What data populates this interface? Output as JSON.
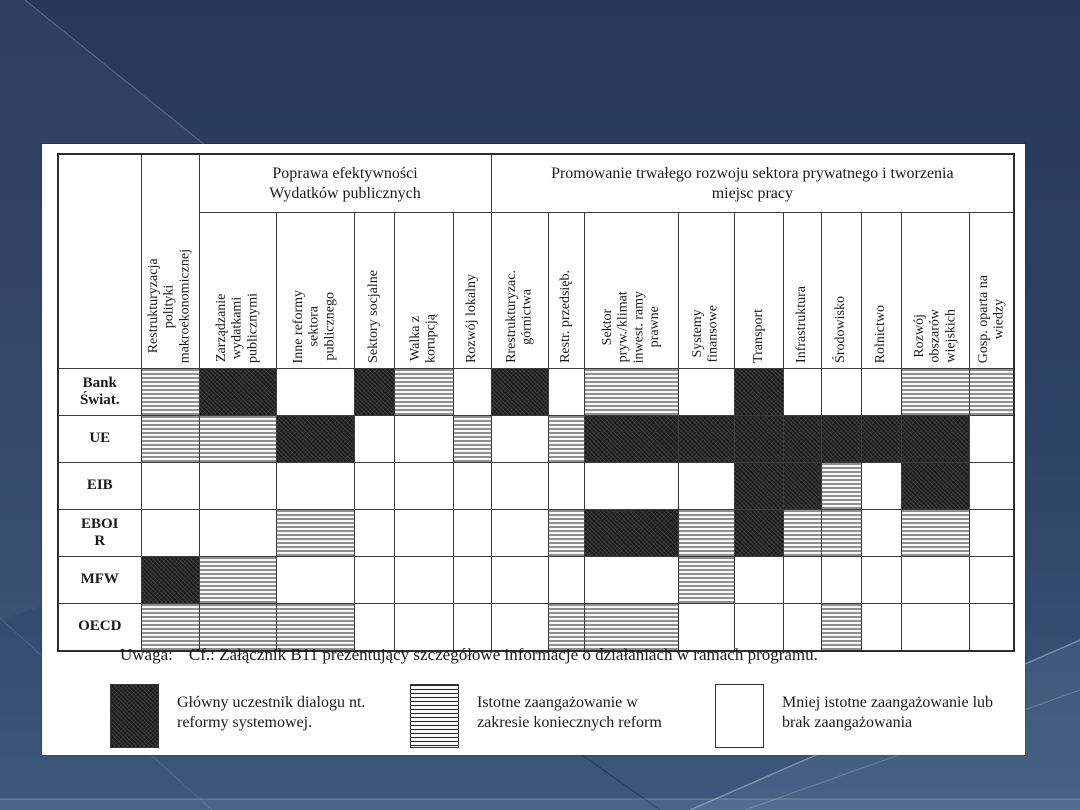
{
  "note": {
    "label": "Uwaga:",
    "text": "Cf.: Załącznik B11 prezentujący szczegółowe informacje o działaniach w ramach programu."
  },
  "table": {
    "groups": [
      {
        "label": "Poprawa efektywności\nWydatków publicznych",
        "span": 5
      },
      {
        "label": "Promowanie trwałego rozwoju sektora prywatnego i tworzenia\nmiejsc pracy",
        "span": 10
      }
    ],
    "columns": [
      "Restrukturyzacja\npolityki\nmakroekonomicznej",
      "Zarządzanie\nwydatkami\npublicznymi",
      "Inne reformy\nsektora\npublicznego",
      "Sektory socjalne",
      "Walka z\nkorupcją",
      "Rozwój lokalny",
      "Rrestrukturyzac.\ngórnictwa",
      "Restr. przedsięb.",
      "Sektor\npryw./klimat\ninwest. ramy\nprawne",
      "Systemy\nfinansowe",
      "Transport",
      "Infrastruktura",
      "Środowisko",
      "Rolnictwo",
      "Rozwój\nobszarów\nwiejskich",
      "Gosp. oparta na\nwiedzy"
    ],
    "rows": [
      {
        "name": "Bank\nŚwiat.",
        "cells": [
          "significant",
          "major",
          "minor",
          "major",
          "significant",
          "minor",
          "major",
          "minor",
          "significant",
          "minor",
          "major",
          "minor",
          "minor",
          "minor",
          "significant",
          "significant"
        ]
      },
      {
        "name": "UE",
        "cells": [
          "significant",
          "significant",
          "major",
          "minor",
          "minor",
          "significant",
          "minor",
          "significant",
          "major",
          "major",
          "major",
          "major",
          "major",
          "major",
          "major",
          "minor"
        ]
      },
      {
        "name": "EIB",
        "cells": [
          "minor",
          "minor",
          "minor",
          "minor",
          "minor",
          "minor",
          "minor",
          "minor",
          "minor",
          "minor",
          "major",
          "major",
          "significant",
          "minor",
          "major",
          "minor"
        ]
      },
      {
        "name": "EBOI\nR",
        "cells": [
          "minor",
          "minor",
          "significant",
          "minor",
          "minor",
          "minor",
          "minor",
          "significant",
          "major",
          "significant",
          "major",
          "significant",
          "significant",
          "minor",
          "significant",
          "minor"
        ]
      },
      {
        "name": "MFW",
        "cells": [
          "major",
          "significant",
          "minor",
          "minor",
          "minor",
          "minor",
          "minor",
          "minor",
          "minor",
          "significant",
          "minor",
          "minor",
          "minor",
          "minor",
          "minor",
          "minor"
        ]
      },
      {
        "name": "OECD",
        "cells": [
          "significant",
          "significant",
          "significant",
          "minor",
          "minor",
          "minor",
          "minor",
          "significant",
          "significant",
          "minor",
          "minor",
          "minor",
          "significant",
          "minor",
          "minor",
          "minor"
        ]
      }
    ]
  },
  "legend": {
    "items": [
      {
        "pattern": "major",
        "label": "Główny uczestnik dialogu nt. reformy systemowej."
      },
      {
        "pattern": "significant",
        "label": "Istotne zaangażowanie w zakresie koniecznych reform"
      },
      {
        "pattern": "minor",
        "label": "Mniej istotne zaangażowanie lub brak zaangażowania"
      }
    ]
  },
  "colors": {
    "background": "#2c4263",
    "panel": "#ffffff",
    "ink": "#1a1a1a",
    "cell_dark": "#1d1d1d"
  }
}
